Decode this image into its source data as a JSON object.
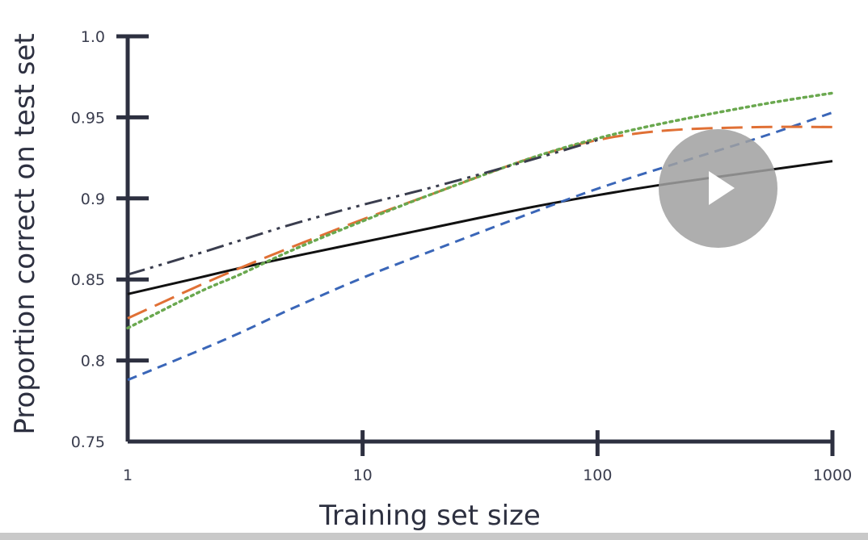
{
  "chart_data": {
    "type": "line",
    "xlabel": "Training set size",
    "ylabel": "Proportion correct on test set",
    "x_scale": "log",
    "xlim": [
      1,
      1000
    ],
    "ylim": [
      0.75,
      1.0
    ],
    "x_ticks": [
      "1",
      "10",
      "100",
      "1000"
    ],
    "y_ticks": [
      "0.75",
      "0.8",
      "0.85",
      "0.9",
      "0.95",
      "1.0"
    ],
    "grid": false,
    "series": [
      {
        "color": "#111111",
        "style": "solid",
        "points": [
          [
            1,
            0.841
          ],
          [
            2,
            0.851
          ],
          [
            3,
            0.857
          ],
          [
            5,
            0.864
          ],
          [
            10,
            0.873
          ],
          [
            20,
            0.882
          ],
          [
            50,
            0.894
          ],
          [
            100,
            0.902
          ],
          [
            200,
            0.909
          ],
          [
            500,
            0.917
          ],
          [
            1000,
            0.923
          ]
        ]
      },
      {
        "color": "#3a66b8",
        "style": "dashed",
        "points": [
          [
            1,
            0.788
          ],
          [
            2,
            0.806
          ],
          [
            3,
            0.817
          ],
          [
            5,
            0.832
          ],
          [
            10,
            0.851
          ],
          [
            20,
            0.868
          ],
          [
            50,
            0.89
          ],
          [
            100,
            0.906
          ],
          [
            200,
            0.92
          ],
          [
            500,
            0.938
          ],
          [
            1000,
            0.953
          ]
        ]
      },
      {
        "color": "#e07035",
        "style": "long-dashed",
        "points": [
          [
            1,
            0.826
          ],
          [
            2,
            0.846
          ],
          [
            3,
            0.857
          ],
          [
            5,
            0.87
          ],
          [
            10,
            0.887
          ],
          [
            20,
            0.903
          ],
          [
            50,
            0.924
          ],
          [
            100,
            0.936
          ],
          [
            200,
            0.942
          ],
          [
            500,
            0.944
          ],
          [
            1000,
            0.944
          ]
        ]
      },
      {
        "color": "#6aa84f",
        "style": "dotted",
        "points": [
          [
            1,
            0.82
          ],
          [
            2,
            0.842
          ],
          [
            3,
            0.853
          ],
          [
            5,
            0.868
          ],
          [
            10,
            0.886
          ],
          [
            20,
            0.903
          ],
          [
            50,
            0.924
          ],
          [
            100,
            0.937
          ],
          [
            200,
            0.947
          ],
          [
            500,
            0.958
          ],
          [
            1000,
            0.965
          ]
        ]
      },
      {
        "color": "#3a3d4e",
        "style": "dash-dot-dot",
        "points": [
          [
            1,
            0.853
          ],
          [
            2,
            0.866
          ],
          [
            3,
            0.874
          ],
          [
            5,
            0.884
          ],
          [
            10,
            0.896
          ],
          [
            20,
            0.907
          ],
          [
            50,
            0.923
          ],
          [
            100,
            0.936
          ]
        ]
      }
    ]
  },
  "colors": {
    "axis": "#2d3040",
    "play_button": "#a0a0a0"
  },
  "video": {
    "play_icon": "play-icon"
  }
}
